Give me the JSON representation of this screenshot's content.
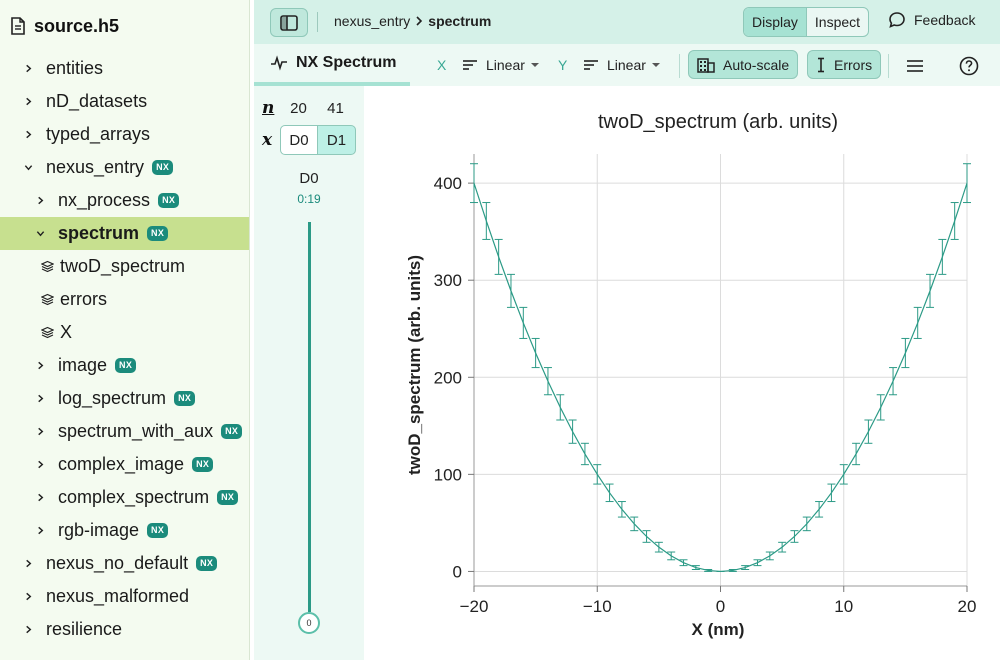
{
  "sidebar": {
    "file_name": "source.h5",
    "items": [
      {
        "label": "entities",
        "level": 0,
        "expandable": true,
        "expanded": false,
        "badge": "",
        "selected": false,
        "type": "group"
      },
      {
        "label": "nD_datasets",
        "level": 0,
        "expandable": true,
        "expanded": false,
        "badge": "",
        "selected": false,
        "type": "group"
      },
      {
        "label": "typed_arrays",
        "level": 0,
        "expandable": true,
        "expanded": false,
        "badge": "",
        "selected": false,
        "type": "group"
      },
      {
        "label": "nexus_entry",
        "level": 0,
        "expandable": true,
        "expanded": true,
        "badge": "NX",
        "selected": false,
        "type": "group"
      },
      {
        "label": "nx_process",
        "level": 1,
        "expandable": true,
        "expanded": false,
        "badge": "NX",
        "selected": false,
        "type": "group"
      },
      {
        "label": "spectrum",
        "level": 1,
        "expandable": true,
        "expanded": true,
        "badge": "NX",
        "selected": true,
        "type": "group"
      },
      {
        "label": "twoD_spectrum",
        "level": 2,
        "expandable": false,
        "expanded": false,
        "badge": "",
        "selected": false,
        "type": "dataset"
      },
      {
        "label": "errors",
        "level": 2,
        "expandable": false,
        "expanded": false,
        "badge": "",
        "selected": false,
        "type": "dataset"
      },
      {
        "label": "X",
        "level": 2,
        "expandable": false,
        "expanded": false,
        "badge": "",
        "selected": false,
        "type": "dataset"
      },
      {
        "label": "image",
        "level": 1,
        "expandable": true,
        "expanded": false,
        "badge": "NX",
        "selected": false,
        "type": "group"
      },
      {
        "label": "log_spectrum",
        "level": 1,
        "expandable": true,
        "expanded": false,
        "badge": "NX",
        "selected": false,
        "type": "group"
      },
      {
        "label": "spectrum_with_aux",
        "level": 1,
        "expandable": true,
        "expanded": false,
        "badge": "NX",
        "selected": false,
        "type": "group"
      },
      {
        "label": "complex_image",
        "level": 1,
        "expandable": true,
        "expanded": false,
        "badge": "NX",
        "selected": false,
        "type": "group"
      },
      {
        "label": "complex_spectrum",
        "level": 1,
        "expandable": true,
        "expanded": false,
        "badge": "NX",
        "selected": false,
        "type": "group"
      },
      {
        "label": "rgb-image",
        "level": 1,
        "expandable": true,
        "expanded": false,
        "badge": "NX",
        "selected": false,
        "type": "group"
      },
      {
        "label": "nexus_no_default",
        "level": 0,
        "expandable": true,
        "expanded": false,
        "badge": "NX",
        "selected": false,
        "type": "group"
      },
      {
        "label": "nexus_malformed",
        "level": 0,
        "expandable": true,
        "expanded": false,
        "badge": "",
        "selected": false,
        "type": "group"
      },
      {
        "label": "resilience",
        "level": 0,
        "expandable": true,
        "expanded": false,
        "badge": "",
        "selected": false,
        "type": "group"
      }
    ]
  },
  "header": {
    "breadcrumb": [
      "nexus_entry",
      "spectrum"
    ],
    "modes": [
      "Display",
      "Inspect"
    ],
    "active_mode": "Display",
    "feedback_label": "Feedback"
  },
  "toolbar": {
    "vis_tab_label": "NX Spectrum",
    "x_axis_letter": "X",
    "x_scale": "Linear",
    "y_axis_letter": "Y",
    "y_scale": "Linear",
    "autoscale_label": "Auto-scale",
    "errors_label": "Errors"
  },
  "dims": {
    "n_label": "n",
    "x_label": "x",
    "sizes": [
      "20",
      "41"
    ],
    "buttons": [
      "D0",
      "D1"
    ],
    "active_button": "D1",
    "slider_name": "D0",
    "slider_range": "0:19",
    "slider_value": "0",
    "slider_fraction": 0
  },
  "colors": {
    "accent": "#1b8b7c",
    "line": "#2b9a86",
    "selected_row": "#c7e08f",
    "header_bg": "#d5f1e8"
  },
  "chart_data": {
    "type": "line",
    "title": "twoD_spectrum (arb. units)",
    "xlabel": "X (nm)",
    "ylabel": "twoD_spectrum (arb. units)",
    "xlim": [
      -20,
      20
    ],
    "ylim": [
      -15,
      430
    ],
    "xticks": [
      -20,
      -10,
      0,
      10,
      20
    ],
    "yticks": [
      0,
      100,
      200,
      300,
      400
    ],
    "xtick_labels": [
      "−20",
      "−10",
      "0",
      "10",
      "20"
    ],
    "ytick_labels": [
      "0",
      "100",
      "200",
      "300",
      "400"
    ],
    "grid": true,
    "error_bars": true,
    "x": [
      -20,
      -19,
      -18,
      -17,
      -16,
      -15,
      -14,
      -13,
      -12,
      -11,
      -10,
      -9,
      -8,
      -7,
      -6,
      -5,
      -4,
      -3,
      -2,
      -1,
      0,
      1,
      2,
      3,
      4,
      5,
      6,
      7,
      8,
      9,
      10,
      11,
      12,
      13,
      14,
      15,
      16,
      17,
      18,
      19,
      20
    ],
    "values": [
      400,
      361,
      324,
      289,
      256,
      225,
      196,
      169,
      144,
      121,
      100,
      81,
      64,
      49,
      36,
      25,
      16,
      9,
      4,
      1,
      0,
      1,
      4,
      9,
      16,
      25,
      36,
      49,
      64,
      81,
      100,
      121,
      144,
      169,
      196,
      225,
      256,
      289,
      324,
      361,
      400
    ],
    "errors": [
      20,
      19,
      18,
      17,
      16,
      15,
      14,
      13,
      12,
      11,
      10,
      9,
      8,
      7,
      6,
      5,
      4,
      3,
      2,
      1,
      0,
      1,
      2,
      3,
      4,
      5,
      6,
      7,
      8,
      9,
      10,
      11,
      12,
      13,
      14,
      15,
      16,
      17,
      18,
      19,
      20
    ]
  }
}
